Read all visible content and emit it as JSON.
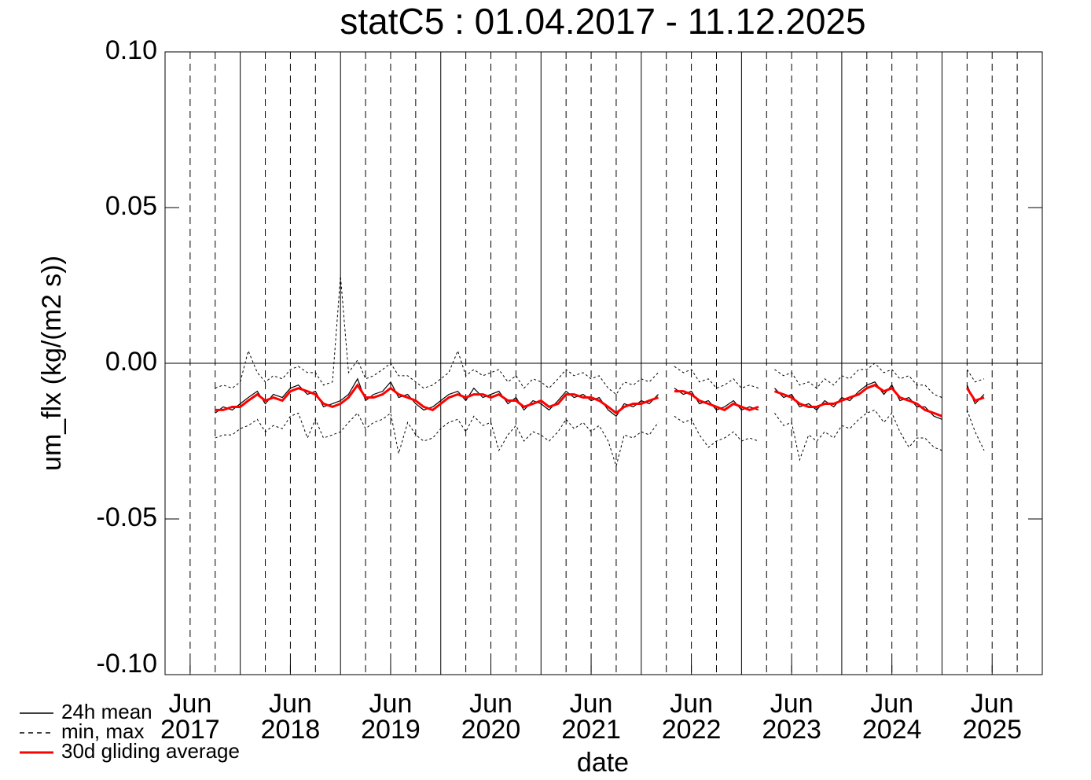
{
  "chart_data": {
    "type": "line",
    "title": "statC5 : 01.04.2017 - 11.12.2025",
    "x_label": "date",
    "y_label": "um_flx (kg/(m2 s))",
    "xlim": [
      2017.25,
      2026.0
    ],
    "ylim": [
      -0.1,
      0.1
    ],
    "yticks": [
      {
        "value": 0.1,
        "label": "0.10"
      },
      {
        "value": 0.05,
        "label": "0.05"
      },
      {
        "value": 0,
        "label": "0.00"
      },
      {
        "value": -0.05,
        "label": "-0.05"
      },
      {
        "value": -0.1,
        "label": "-0.10"
      }
    ],
    "xticks": [
      {
        "value": 2017.5,
        "label": "Jun\n2017"
      },
      {
        "value": 2018.5,
        "label": "Jun\n2018"
      },
      {
        "value": 2019.5,
        "label": "Jun\n2019"
      },
      {
        "value": 2020.5,
        "label": "Jun\n2020"
      },
      {
        "value": 2021.5,
        "label": "Jun\n2021"
      },
      {
        "value": 2022.5,
        "label": "Jun\n2022"
      },
      {
        "value": 2023.5,
        "label": "Jun\n2023"
      },
      {
        "value": 2024.5,
        "label": "Jun\n2024"
      },
      {
        "value": 2025.5,
        "label": "Jun\n2025"
      }
    ],
    "xgrid_years": [
      2018,
      2019,
      2020,
      2021,
      2022,
      2023,
      2024,
      2025
    ],
    "xgrid_quarters": [
      2017.5,
      2017.75,
      2018.25,
      2018.5,
      2018.75,
      2019.25,
      2019.5,
      2019.75,
      2020.25,
      2020.5,
      2020.75,
      2021.25,
      2021.5,
      2021.75,
      2022.25,
      2022.5,
      2022.75,
      2023.25,
      2023.5,
      2023.75,
      2024.25,
      2024.5,
      2024.75,
      2025.25,
      2025.5,
      2025.75
    ],
    "hline": 0,
    "legend": "bottom-left",
    "x": [
      2017.75,
      2017.83,
      2017.92,
      2018.0,
      2018.08,
      2018.17,
      2018.25,
      2018.33,
      2018.42,
      2018.5,
      2018.58,
      2018.67,
      2018.75,
      2018.83,
      2018.92,
      2019.0,
      2019.08,
      2019.17,
      2019.25,
      2019.33,
      2019.42,
      2019.5,
      2019.58,
      2019.67,
      2019.75,
      2019.83,
      2019.92,
      2020.0,
      2020.08,
      2020.17,
      2020.25,
      2020.33,
      2020.42,
      2020.5,
      2020.58,
      2020.67,
      2020.75,
      2020.83,
      2020.92,
      2021.0,
      2021.08,
      2021.17,
      2021.25,
      2021.33,
      2021.42,
      2021.5,
      2021.58,
      2021.67,
      2021.75,
      2021.83,
      2021.92,
      2022.0,
      2022.08,
      2022.17,
      2022.25,
      2022.33,
      2022.42,
      2022.5,
      2022.58,
      2022.67,
      2022.75,
      2022.83,
      2022.92,
      2023.0,
      2023.08,
      2023.17,
      2023.25,
      2023.33,
      2023.42,
      2023.5,
      2023.58,
      2023.67,
      2023.75,
      2023.83,
      2023.92,
      2024.0,
      2024.08,
      2024.17,
      2024.25,
      2024.33,
      2024.42,
      2024.5,
      2024.58,
      2024.67,
      2024.75,
      2024.83,
      2024.92,
      2025.0,
      2025.08,
      2025.17,
      2025.25,
      2025.33,
      2025.42
    ],
    "series": [
      {
        "name": "24h mean",
        "color": "#000000",
        "values": [
          -0.016,
          -0.014,
          -0.015,
          -0.013,
          -0.011,
          -0.009,
          -0.013,
          -0.01,
          -0.011,
          -0.008,
          -0.007,
          -0.01,
          -0.009,
          -0.014,
          -0.013,
          -0.012,
          -0.01,
          -0.005,
          -0.012,
          -0.01,
          -0.009,
          -0.006,
          -0.011,
          -0.01,
          -0.013,
          -0.015,
          -0.014,
          -0.012,
          -0.01,
          -0.009,
          -0.012,
          -0.008,
          -0.011,
          -0.01,
          -0.009,
          -0.013,
          -0.011,
          -0.015,
          -0.012,
          -0.013,
          -0.015,
          -0.012,
          -0.009,
          -0.011,
          -0.01,
          -0.012,
          -0.011,
          -0.015,
          -0.017,
          -0.013,
          -0.014,
          -0.012,
          -0.013,
          -0.01,
          null,
          -0.008,
          -0.01,
          -0.009,
          -0.013,
          -0.012,
          -0.015,
          -0.014,
          -0.012,
          -0.015,
          -0.014,
          -0.015,
          null,
          -0.008,
          -0.011,
          -0.01,
          -0.014,
          -0.013,
          -0.015,
          -0.012,
          -0.014,
          -0.011,
          -0.012,
          -0.009,
          -0.007,
          -0.006,
          -0.01,
          -0.007,
          -0.012,
          -0.011,
          -0.014,
          -0.014,
          -0.017,
          -0.018,
          null,
          null,
          -0.007,
          -0.013,
          -0.01
        ]
      },
      {
        "name": "min, max",
        "color": "#000000",
        "dashed": true,
        "min": [
          -0.024,
          -0.023,
          -0.023,
          -0.021,
          -0.02,
          -0.018,
          -0.022,
          -0.02,
          -0.021,
          -0.017,
          -0.016,
          -0.024,
          -0.018,
          -0.024,
          -0.023,
          -0.022,
          -0.019,
          -0.016,
          -0.021,
          -0.019,
          -0.018,
          -0.016,
          -0.029,
          -0.019,
          -0.023,
          -0.025,
          -0.024,
          -0.021,
          -0.019,
          -0.018,
          -0.022,
          -0.017,
          -0.02,
          -0.019,
          -0.028,
          -0.023,
          -0.02,
          -0.025,
          -0.022,
          -0.023,
          -0.025,
          -0.022,
          -0.018,
          -0.021,
          -0.019,
          -0.022,
          -0.02,
          -0.025,
          -0.033,
          -0.023,
          -0.024,
          -0.022,
          -0.023,
          -0.019,
          null,
          -0.017,
          -0.019,
          -0.018,
          -0.023,
          -0.027,
          -0.025,
          -0.024,
          -0.022,
          -0.025,
          -0.024,
          -0.025,
          null,
          -0.016,
          -0.02,
          -0.019,
          -0.031,
          -0.023,
          -0.025,
          -0.022,
          -0.024,
          -0.02,
          -0.021,
          -0.018,
          -0.016,
          -0.015,
          -0.019,
          -0.016,
          -0.022,
          -0.027,
          -0.024,
          -0.024,
          -0.027,
          -0.028,
          null,
          null,
          -0.015,
          -0.022,
          -0.028
        ],
        "max": [
          -0.008,
          -0.007,
          -0.008,
          -0.006,
          0.004,
          -0.003,
          -0.006,
          -0.004,
          -0.005,
          -0.002,
          -0.001,
          -0.003,
          -0.003,
          -0.007,
          -0.006,
          0.028,
          -0.003,
          0.001,
          -0.005,
          -0.004,
          -0.002,
          0.0,
          -0.004,
          -0.004,
          -0.006,
          -0.008,
          -0.007,
          -0.005,
          -0.003,
          0.004,
          -0.004,
          -0.002,
          -0.004,
          -0.003,
          -0.002,
          -0.006,
          -0.004,
          -0.008,
          -0.005,
          -0.006,
          -0.008,
          -0.005,
          -0.002,
          -0.004,
          -0.003,
          -0.005,
          -0.004,
          -0.008,
          -0.01,
          -0.006,
          -0.007,
          -0.005,
          -0.006,
          -0.003,
          null,
          -0.001,
          -0.003,
          -0.002,
          -0.006,
          -0.005,
          -0.008,
          -0.007,
          -0.005,
          -0.008,
          -0.007,
          -0.008,
          null,
          -0.002,
          -0.004,
          -0.003,
          -0.007,
          -0.006,
          -0.008,
          -0.005,
          -0.007,
          -0.004,
          -0.005,
          -0.002,
          -0.002,
          0.0,
          -0.003,
          -0.002,
          -0.005,
          -0.004,
          -0.007,
          -0.007,
          -0.01,
          -0.011,
          null,
          null,
          -0.002,
          -0.006,
          -0.005
        ]
      },
      {
        "name": "30d gliding average",
        "color": "#ff0000",
        "values": [
          -0.015,
          -0.015,
          -0.014,
          -0.014,
          -0.012,
          -0.01,
          -0.012,
          -0.011,
          -0.012,
          -0.009,
          -0.008,
          -0.009,
          -0.01,
          -0.013,
          -0.014,
          -0.013,
          -0.011,
          -0.007,
          -0.011,
          -0.011,
          -0.01,
          -0.008,
          -0.01,
          -0.011,
          -0.012,
          -0.014,
          -0.015,
          -0.013,
          -0.011,
          -0.01,
          -0.011,
          -0.01,
          -0.01,
          -0.011,
          -0.01,
          -0.012,
          -0.012,
          -0.014,
          -0.013,
          -0.012,
          -0.014,
          -0.013,
          -0.01,
          -0.01,
          -0.011,
          -0.011,
          -0.012,
          -0.014,
          -0.016,
          -0.014,
          -0.013,
          -0.013,
          -0.012,
          -0.011,
          null,
          -0.009,
          -0.009,
          -0.01,
          -0.012,
          -0.013,
          -0.014,
          -0.015,
          -0.013,
          -0.014,
          -0.015,
          -0.014,
          null,
          -0.009,
          -0.01,
          -0.011,
          -0.013,
          -0.014,
          -0.014,
          -0.013,
          -0.013,
          -0.012,
          -0.011,
          -0.01,
          -0.008,
          -0.007,
          -0.009,
          -0.008,
          -0.011,
          -0.012,
          -0.013,
          -0.015,
          -0.016,
          -0.017,
          null,
          null,
          -0.008,
          -0.012,
          -0.011
        ]
      }
    ]
  }
}
